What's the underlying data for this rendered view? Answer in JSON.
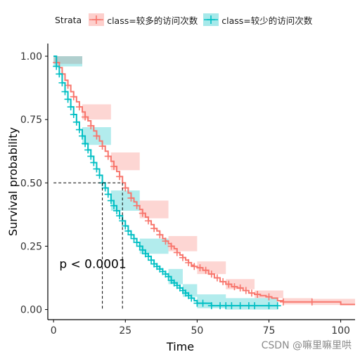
{
  "legend": {
    "title": "Strata",
    "items": [
      {
        "label": "class=较多的访问次数",
        "color": "#F8766D"
      },
      {
        "label": "class=较少的访问次数",
        "color": "#00BFC4"
      }
    ]
  },
  "watermark": "CSDN @嘛里嘛里哄",
  "chart_data": {
    "type": "line",
    "subtype": "kaplan-meier-step",
    "xlabel": "Time",
    "ylabel": "Survival probability",
    "xlim": [
      -2,
      105
    ],
    "ylim": [
      -0.04,
      1.05
    ],
    "xticks": [
      0,
      25,
      50,
      75,
      100
    ],
    "yticks": [
      0.0,
      0.25,
      0.5,
      0.75,
      1.0
    ],
    "ytick_labels": [
      "0.00",
      "0.25",
      "0.50",
      "0.75",
      "1.00"
    ],
    "grid": false,
    "legend_position": "top",
    "annotation": "p < 0.0001",
    "median_survival": {
      "y": 0.5,
      "x": [
        17,
        24
      ]
    },
    "series": [
      {
        "name": "class=较多的访问次数",
        "color": "#F8766D",
        "points": [
          [
            0,
            1.0
          ],
          [
            1,
            0.975
          ],
          [
            2,
            0.955
          ],
          [
            3,
            0.93
          ],
          [
            4,
            0.905
          ],
          [
            5,
            0.885
          ],
          [
            6,
            0.86
          ],
          [
            7,
            0.84
          ],
          [
            8,
            0.82
          ],
          [
            9,
            0.8
          ],
          [
            10,
            0.78
          ],
          [
            11,
            0.76
          ],
          [
            12,
            0.745
          ],
          [
            13,
            0.725
          ],
          [
            14,
            0.705
          ],
          [
            15,
            0.685
          ],
          [
            16,
            0.665
          ],
          [
            17,
            0.645
          ],
          [
            18,
            0.625
          ],
          [
            19,
            0.605
          ],
          [
            20,
            0.585
          ],
          [
            21,
            0.565
          ],
          [
            22,
            0.545
          ],
          [
            23,
            0.525
          ],
          [
            24,
            0.5
          ],
          [
            25,
            0.48
          ],
          [
            26,
            0.46
          ],
          [
            27,
            0.44
          ],
          [
            28,
            0.425
          ],
          [
            29,
            0.41
          ],
          [
            30,
            0.395
          ],
          [
            31,
            0.38
          ],
          [
            32,
            0.365
          ],
          [
            33,
            0.35
          ],
          [
            34,
            0.335
          ],
          [
            35,
            0.32
          ],
          [
            36,
            0.31
          ],
          [
            37,
            0.295
          ],
          [
            38,
            0.28
          ],
          [
            39,
            0.27
          ],
          [
            40,
            0.26
          ],
          [
            41,
            0.25
          ],
          [
            42,
            0.24
          ],
          [
            43,
            0.225
          ],
          [
            44,
            0.215
          ],
          [
            45,
            0.205
          ],
          [
            46,
            0.195
          ],
          [
            47,
            0.185
          ],
          [
            48,
            0.175
          ],
          [
            49,
            0.17
          ],
          [
            50,
            0.165
          ],
          [
            52,
            0.155
          ],
          [
            54,
            0.14
          ],
          [
            56,
            0.125
          ],
          [
            58,
            0.11
          ],
          [
            60,
            0.1
          ],
          [
            62,
            0.09
          ],
          [
            64,
            0.085
          ],
          [
            66,
            0.075
          ],
          [
            68,
            0.065
          ],
          [
            70,
            0.06
          ],
          [
            72,
            0.055
          ],
          [
            74,
            0.05
          ],
          [
            76,
            0.045
          ],
          [
            78,
            0.035
          ],
          [
            80,
            0.03
          ],
          [
            85,
            0.03
          ],
          [
            90,
            0.03
          ],
          [
            95,
            0.03
          ],
          [
            100,
            0.02
          ],
          [
            105,
            0.02
          ]
        ],
        "ci": [
          [
            0,
            0.97,
            1.0
          ],
          [
            10,
            0.75,
            0.81
          ],
          [
            20,
            0.55,
            0.62
          ],
          [
            30,
            0.36,
            0.43
          ],
          [
            40,
            0.23,
            0.29
          ],
          [
            50,
            0.14,
            0.19
          ],
          [
            60,
            0.08,
            0.12
          ],
          [
            70,
            0.045,
            0.075
          ],
          [
            80,
            0.02,
            0.045
          ],
          [
            90,
            0.018,
            0.042
          ],
          [
            105,
            0.01,
            0.03
          ]
        ],
        "censor_x": [
          1,
          3,
          5,
          7,
          9,
          11,
          13,
          15,
          17,
          19,
          21,
          23,
          25,
          27,
          29,
          31,
          33,
          35,
          37,
          39,
          41,
          43,
          45,
          47,
          49,
          51,
          53,
          55,
          57,
          59,
          61,
          63,
          65,
          67,
          69,
          71,
          75,
          80,
          90
        ]
      },
      {
        "name": "class=较少的访问次数",
        "color": "#00BFC4",
        "points": [
          [
            0,
            1.0
          ],
          [
            1,
            0.96
          ],
          [
            2,
            0.93
          ],
          [
            3,
            0.895
          ],
          [
            4,
            0.86
          ],
          [
            5,
            0.83
          ],
          [
            6,
            0.8
          ],
          [
            7,
            0.77
          ],
          [
            8,
            0.74
          ],
          [
            9,
            0.71
          ],
          [
            10,
            0.685
          ],
          [
            11,
            0.655
          ],
          [
            12,
            0.63
          ],
          [
            13,
            0.605
          ],
          [
            14,
            0.58
          ],
          [
            15,
            0.555
          ],
          [
            16,
            0.53
          ],
          [
            17,
            0.5
          ],
          [
            18,
            0.48
          ],
          [
            19,
            0.455
          ],
          [
            20,
            0.43
          ],
          [
            21,
            0.41
          ],
          [
            22,
            0.39
          ],
          [
            23,
            0.37
          ],
          [
            24,
            0.35
          ],
          [
            25,
            0.33
          ],
          [
            26,
            0.31
          ],
          [
            27,
            0.295
          ],
          [
            28,
            0.28
          ],
          [
            29,
            0.265
          ],
          [
            30,
            0.25
          ],
          [
            31,
            0.235
          ],
          [
            32,
            0.22
          ],
          [
            33,
            0.21
          ],
          [
            34,
            0.195
          ],
          [
            35,
            0.18
          ],
          [
            36,
            0.17
          ],
          [
            37,
            0.16
          ],
          [
            38,
            0.15
          ],
          [
            39,
            0.14
          ],
          [
            40,
            0.13
          ],
          [
            41,
            0.115
          ],
          [
            42,
            0.105
          ],
          [
            43,
            0.095
          ],
          [
            44,
            0.085
          ],
          [
            45,
            0.075
          ],
          [
            46,
            0.065
          ],
          [
            47,
            0.055
          ],
          [
            48,
            0.045
          ],
          [
            49,
            0.035
          ],
          [
            50,
            0.025
          ],
          [
            52,
            0.025
          ],
          [
            55,
            0.015
          ],
          [
            60,
            0.015
          ],
          [
            65,
            0.015
          ],
          [
            70,
            0.015
          ],
          [
            75,
            0.015
          ],
          [
            78,
            0.015
          ]
        ],
        "ci": [
          [
            0,
            0.96,
            1.0
          ],
          [
            10,
            0.65,
            0.72
          ],
          [
            20,
            0.39,
            0.47
          ],
          [
            30,
            0.22,
            0.28
          ],
          [
            40,
            0.1,
            0.16
          ],
          [
            45,
            0.05,
            0.1
          ],
          [
            50,
            0.005,
            0.06
          ],
          [
            60,
            0.0,
            0.045
          ],
          [
            78,
            0.0,
            0.045
          ]
        ],
        "censor_x": [
          1,
          2,
          3,
          4,
          5,
          6,
          7,
          8,
          9,
          10,
          11,
          12,
          13,
          14,
          15,
          16,
          17,
          18,
          19,
          20,
          21,
          22,
          23,
          24,
          25,
          26,
          27,
          28,
          29,
          30,
          31,
          32,
          33,
          34,
          35,
          36,
          37,
          38,
          39,
          40,
          41,
          42,
          43,
          44,
          45,
          46,
          47,
          48,
          50,
          52,
          55,
          58,
          60,
          62,
          65,
          68,
          70,
          75,
          78
        ]
      }
    ]
  }
}
